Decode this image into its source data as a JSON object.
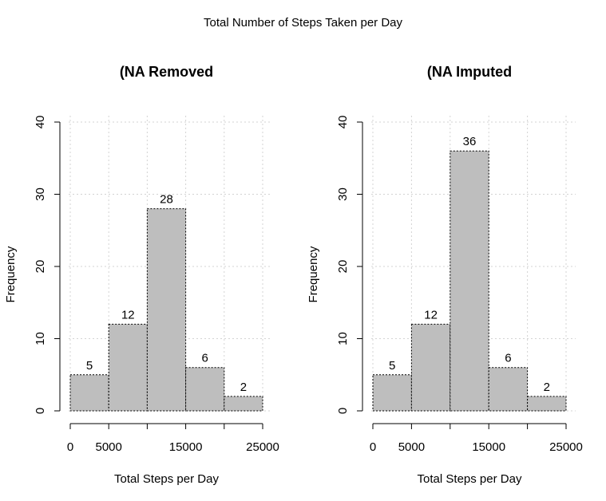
{
  "figure": {
    "title": "Total Number of Steps Taken per Day"
  },
  "chart_data": [
    {
      "type": "bar",
      "title": "(NA Removed",
      "xlabel": "Total Steps per Day",
      "ylabel": "Frequency",
      "bins": [
        [
          0,
          5000
        ],
        [
          5000,
          10000
        ],
        [
          10000,
          15000
        ],
        [
          15000,
          20000
        ],
        [
          20000,
          25000
        ]
      ],
      "values": [
        5,
        12,
        28,
        6,
        2
      ],
      "xlim": [
        0,
        25000
      ],
      "ylim": [
        0,
        40
      ],
      "xticks": [
        0,
        5000,
        15000,
        25000
      ],
      "xtick_labels": [
        "0",
        "5000",
        "15000",
        "25000"
      ],
      "yticks": [
        0,
        10,
        20,
        30,
        40
      ],
      "ytick_labels": [
        "0",
        "10",
        "20",
        "30",
        "40"
      ],
      "grid": true,
      "bar_color": "#BEBEBE",
      "grid_color": "#D3D3D3"
    },
    {
      "type": "bar",
      "title": "(NA Imputed",
      "xlabel": "Total Steps per Day",
      "ylabel": "Frequency",
      "bins": [
        [
          0,
          5000
        ],
        [
          5000,
          10000
        ],
        [
          10000,
          15000
        ],
        [
          15000,
          20000
        ],
        [
          20000,
          25000
        ]
      ],
      "values": [
        5,
        12,
        36,
        6,
        2
      ],
      "xlim": [
        0,
        25000
      ],
      "ylim": [
        0,
        40
      ],
      "xticks": [
        0,
        5000,
        15000,
        25000
      ],
      "xtick_labels": [
        "0",
        "5000",
        "15000",
        "25000"
      ],
      "yticks": [
        0,
        10,
        20,
        30,
        40
      ],
      "ytick_labels": [
        "0",
        "10",
        "20",
        "30",
        "40"
      ],
      "grid": true,
      "bar_color": "#BEBEBE",
      "grid_color": "#D3D3D3"
    }
  ]
}
